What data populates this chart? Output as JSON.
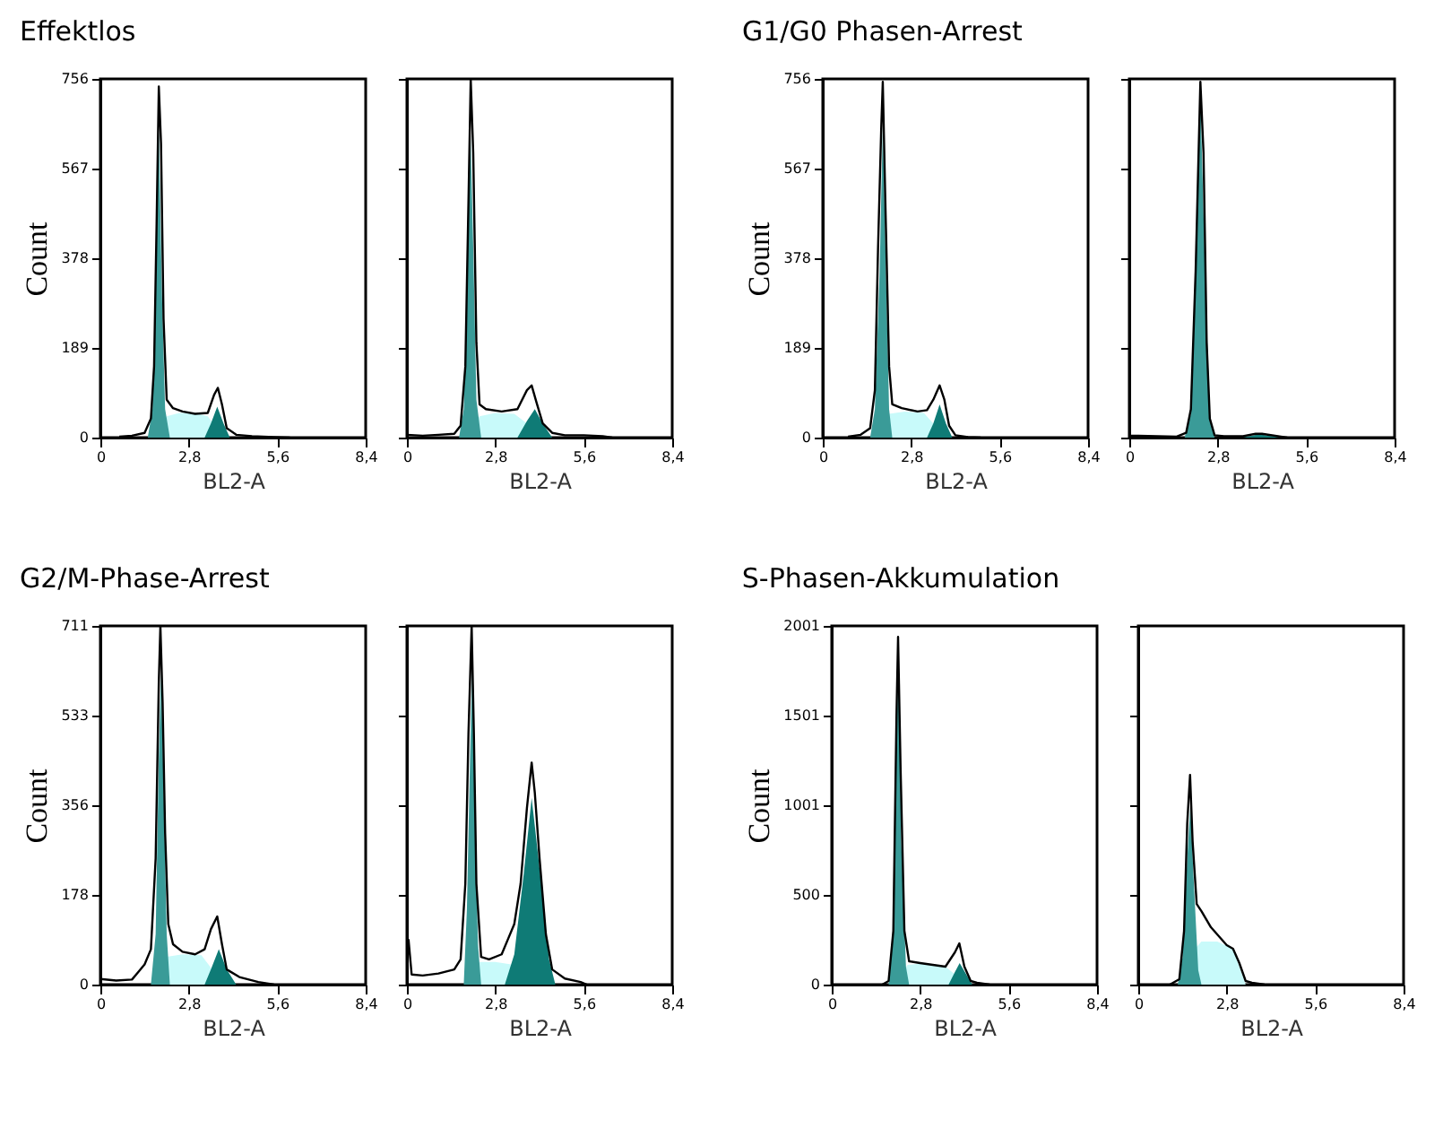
{
  "chart_data": [
    {
      "type": "area",
      "title": "Effektlos",
      "xlabel": "BL2-A",
      "ylabel": "Count",
      "xlim": [
        0,
        8.4
      ],
      "ylim": [
        0,
        756
      ],
      "xticks": [
        {
          "value": 0,
          "label": "0"
        },
        {
          "value": 2.8,
          "label": "2,8"
        },
        {
          "value": 5.6,
          "label": "5,6"
        },
        {
          "value": 8.4,
          "label": "8,4"
        }
      ],
      "yticks": [
        0,
        189,
        378,
        567,
        756
      ],
      "series": [
        {
          "type": "area",
          "color": "#c8fafa",
          "x": [
            1.7,
            2.1,
            2.5,
            3.0,
            3.4,
            3.9
          ],
          "values": [
            0,
            45,
            52,
            52,
            45,
            0
          ]
        },
        {
          "type": "area",
          "color": "#3a9b98",
          "x": [
            1.5,
            1.65,
            1.75,
            1.85,
            1.95,
            2.05,
            2.2
          ],
          "values": [
            0,
            60,
            300,
            650,
            300,
            60,
            0
          ]
        },
        {
          "type": "area",
          "color": "#0f7b76",
          "x": [
            3.3,
            3.5,
            3.7,
            3.9,
            4.1
          ],
          "values": [
            0,
            30,
            65,
            30,
            0
          ]
        },
        {
          "type": "line",
          "color": "#000000",
          "x": [
            0.6,
            1.0,
            1.4,
            1.6,
            1.7,
            1.78,
            1.85,
            1.92,
            2.0,
            2.1,
            2.3,
            2.6,
            3.0,
            3.4,
            3.6,
            3.72,
            3.85,
            4.0,
            4.3,
            4.8,
            5.5,
            6.0
          ],
          "values": [
            2,
            4,
            10,
            40,
            150,
            450,
            740,
            620,
            250,
            80,
            62,
            55,
            50,
            52,
            90,
            105,
            70,
            20,
            6,
            3,
            1,
            0
          ]
        }
      ]
    },
    {
      "type": "area",
      "xlabel": "BL2-A",
      "xlim": [
        0,
        8.4
      ],
      "ylim": [
        0,
        756
      ],
      "xticks": [
        {
          "value": 0,
          "label": "0"
        },
        {
          "value": 2.8,
          "label": "2,8"
        },
        {
          "value": 5.6,
          "label": "5,6"
        },
        {
          "value": 8.4,
          "label": "8,4"
        }
      ],
      "yticks": [
        0,
        189,
        378,
        567,
        756
      ],
      "tick_labels": "x",
      "series": [
        {
          "type": "area",
          "color": "#c8fafa",
          "x": [
            1.8,
            2.3,
            2.8,
            3.4,
            3.8,
            4.1
          ],
          "values": [
            0,
            45,
            52,
            50,
            30,
            0
          ]
        },
        {
          "type": "area",
          "color": "#3a9b98",
          "x": [
            1.65,
            1.8,
            1.9,
            2.0,
            2.1,
            2.2,
            2.35
          ],
          "values": [
            0,
            60,
            300,
            680,
            400,
            80,
            0
          ]
        },
        {
          "type": "area",
          "color": "#0f7b76",
          "x": [
            3.5,
            3.8,
            4.05,
            4.3,
            4.6
          ],
          "values": [
            0,
            35,
            60,
            30,
            0
          ]
        },
        {
          "type": "line",
          "color": "#000000",
          "x": [
            0,
            0.5,
            1.0,
            1.5,
            1.7,
            1.85,
            1.95,
            2.02,
            2.1,
            2.2,
            2.3,
            2.5,
            3.0,
            3.5,
            3.8,
            3.95,
            4.1,
            4.3,
            4.6,
            5.0,
            5.6,
            6.2,
            6.5
          ],
          "values": [
            6,
            4,
            6,
            8,
            25,
            150,
            500,
            756,
            600,
            200,
            70,
            60,
            55,
            60,
            100,
            110,
            75,
            30,
            10,
            5,
            5,
            3,
            0
          ]
        }
      ]
    },
    {
      "type": "area",
      "title": "G1/G0 Phasen-Arrest",
      "xlabel": "BL2-A",
      "ylabel": "Count",
      "xlim": [
        0,
        8.4
      ],
      "ylim": [
        0,
        756
      ],
      "xticks": [
        {
          "value": 0,
          "label": "0"
        },
        {
          "value": 2.8,
          "label": "2,8"
        },
        {
          "value": 5.6,
          "label": "5,6"
        },
        {
          "value": 8.4,
          "label": "8,4"
        }
      ],
      "yticks": [
        0,
        189,
        378,
        567,
        756
      ],
      "series": [
        {
          "type": "area",
          "color": "#c8fafa",
          "x": [
            1.6,
            2.1,
            2.6,
            3.2,
            3.9
          ],
          "values": [
            0,
            50,
            55,
            52,
            0
          ]
        },
        {
          "type": "area",
          "color": "#3a9b98",
          "x": [
            1.5,
            1.65,
            1.8,
            1.9,
            2.0,
            2.1,
            2.2
          ],
          "values": [
            0,
            60,
            350,
            660,
            350,
            60,
            0
          ]
        },
        {
          "type": "area",
          "color": "#0f7b76",
          "x": [
            3.3,
            3.5,
            3.7,
            3.9,
            4.1
          ],
          "values": [
            0,
            30,
            70,
            30,
            0
          ]
        },
        {
          "type": "line",
          "color": "#000000",
          "x": [
            0.8,
            1.2,
            1.5,
            1.65,
            1.75,
            1.85,
            1.9,
            1.98,
            2.1,
            2.2,
            2.5,
            3.0,
            3.3,
            3.5,
            3.7,
            3.85,
            4.0,
            4.2,
            4.6,
            5.0
          ],
          "values": [
            2,
            6,
            20,
            100,
            400,
            650,
            750,
            500,
            150,
            70,
            62,
            55,
            58,
            80,
            110,
            80,
            25,
            5,
            1,
            0
          ]
        }
      ]
    },
    {
      "type": "area",
      "xlabel": "BL2-A",
      "xlim": [
        0,
        8.4
      ],
      "ylim": [
        0,
        756
      ],
      "xticks": [
        {
          "value": 0,
          "label": "0"
        },
        {
          "value": 2.8,
          "label": "2,8"
        },
        {
          "value": 5.6,
          "label": "5,6"
        },
        {
          "value": 8.4,
          "label": "8,4"
        }
      ],
      "yticks": [
        0,
        189,
        378,
        567,
        756
      ],
      "tick_labels": "x",
      "series": [
        {
          "type": "area",
          "color": "#3a9b98",
          "x": [
            1.75,
            1.95,
            2.1,
            2.25,
            2.4,
            2.55,
            2.7
          ],
          "values": [
            0,
            50,
            330,
            720,
            350,
            40,
            0
          ]
        },
        {
          "type": "area",
          "color": "#0f7b76",
          "x": [
            3.6,
            4.1,
            4.8
          ],
          "values": [
            0,
            7,
            0
          ]
        },
        {
          "type": "line",
          "color": "#000000",
          "x": [
            0,
            0.1,
            1.5,
            1.8,
            1.95,
            2.1,
            2.25,
            2.35,
            2.45,
            2.55,
            2.7,
            3.0,
            3.6,
            4.0,
            4.2,
            4.8,
            5.0
          ],
          "values": [
            4,
            4,
            2,
            10,
            60,
            350,
            750,
            600,
            200,
            40,
            5,
            3,
            3,
            8,
            8,
            2,
            0
          ]
        }
      ]
    },
    {
      "type": "area",
      "title": "G2/M-Phase-Arrest",
      "xlabel": "BL2-A",
      "ylabel": "Count",
      "xlim": [
        0,
        8.4
      ],
      "ylim": [
        0,
        711
      ],
      "xticks": [
        {
          "value": 0,
          "label": "0"
        },
        {
          "value": 2.8,
          "label": "2,8"
        },
        {
          "value": 5.6,
          "label": "5,6"
        },
        {
          "value": 8.4,
          "label": "8,4"
        }
      ],
      "yticks": [
        0,
        178,
        356,
        533,
        711
      ],
      "series": [
        {
          "type": "area",
          "color": "#c8fafa",
          "x": [
            1.7,
            2.1,
            2.6,
            3.2,
            3.9
          ],
          "values": [
            0,
            55,
            60,
            58,
            0
          ]
        },
        {
          "type": "area",
          "color": "#3a9b98",
          "x": [
            1.6,
            1.75,
            1.85,
            1.92,
            2.0,
            2.1,
            2.2
          ],
          "values": [
            0,
            100,
            450,
            620,
            400,
            100,
            0
          ]
        },
        {
          "type": "area",
          "color": "#0f7b76",
          "x": [
            3.3,
            3.5,
            3.75,
            4.0,
            4.3
          ],
          "values": [
            0,
            30,
            70,
            30,
            0
          ]
        },
        {
          "type": "line",
          "color": "#000000",
          "x": [
            0,
            0.5,
            1.0,
            1.2,
            1.4,
            1.6,
            1.75,
            1.85,
            1.9,
            1.97,
            2.05,
            2.15,
            2.3,
            2.6,
            3.0,
            3.3,
            3.5,
            3.7,
            3.85,
            4.0,
            4.4,
            5.0,
            5.5
          ],
          "values": [
            11,
            8,
            10,
            25,
            40,
            70,
            250,
            600,
            711,
            560,
            300,
            120,
            80,
            65,
            60,
            70,
            110,
            135,
            80,
            30,
            15,
            5,
            0
          ]
        }
      ]
    },
    {
      "type": "area",
      "xlabel": "BL2-A",
      "xlim": [
        0,
        8.4
      ],
      "ylim": [
        0,
        711
      ],
      "xticks": [
        {
          "value": 0,
          "label": "0"
        },
        {
          "value": 2.8,
          "label": "2,8"
        },
        {
          "value": 5.6,
          "label": "5,6"
        },
        {
          "value": 8.4,
          "label": "8,4"
        }
      ],
      "yticks": [
        0,
        178,
        356,
        533,
        711
      ],
      "tick_labels": "x",
      "series": [
        {
          "type": "area",
          "color": "#c8fafa",
          "x": [
            1.9,
            2.3,
            2.8,
            3.3,
            3.9
          ],
          "values": [
            0,
            45,
            45,
            40,
            0
          ]
        },
        {
          "type": "area",
          "color": "#3a9b98",
          "x": [
            1.8,
            1.9,
            2.0,
            2.07,
            2.15,
            2.25,
            2.35
          ],
          "values": [
            0,
            150,
            450,
            640,
            350,
            80,
            0
          ]
        },
        {
          "type": "area",
          "color": "#0f7b76",
          "x": [
            3.1,
            3.4,
            3.7,
            3.95,
            4.2,
            4.5,
            4.7
          ],
          "values": [
            0,
            60,
            220,
            370,
            230,
            50,
            0
          ]
        },
        {
          "type": "line",
          "color": "#000000",
          "x": [
            0.05,
            0.15,
            0.5,
            1.0,
            1.5,
            1.7,
            1.85,
            1.95,
            2.05,
            2.12,
            2.2,
            2.35,
            2.6,
            3.0,
            3.2,
            3.4,
            3.6,
            3.8,
            3.95,
            4.05,
            4.2,
            4.4,
            4.6,
            5.0,
            5.5,
            5.7
          ],
          "values": [
            90,
            20,
            18,
            22,
            30,
            50,
            200,
            500,
            711,
            500,
            200,
            55,
            50,
            60,
            90,
            120,
            200,
            350,
            440,
            380,
            250,
            100,
            30,
            12,
            5,
            0
          ]
        }
      ]
    },
    {
      "type": "area",
      "title": "S-Phasen-Akkumulation",
      "xlabel": "BL2-A",
      "ylabel": "Count",
      "xlim": [
        0,
        8.4
      ],
      "ylim": [
        0,
        2001
      ],
      "xticks": [
        {
          "value": 0,
          "label": "0"
        },
        {
          "value": 2.8,
          "label": "2,8"
        },
        {
          "value": 5.6,
          "label": "5,6"
        },
        {
          "value": 8.4,
          "label": "8,4"
        }
      ],
      "yticks": [
        0,
        500,
        1001,
        1501,
        2001
      ],
      "series": [
        {
          "type": "area",
          "color": "#c8fafa",
          "x": [
            2.0,
            2.4,
            3.0,
            3.6,
            4.3
          ],
          "values": [
            0,
            110,
            120,
            100,
            0
          ]
        },
        {
          "type": "area",
          "color": "#3a9b98",
          "x": [
            1.8,
            1.95,
            2.05,
            2.12,
            2.2,
            2.35,
            2.45
          ],
          "values": [
            0,
            300,
            1400,
            1800,
            800,
            100,
            0
          ]
        },
        {
          "type": "area",
          "color": "#0f7b76",
          "x": [
            3.7,
            3.9,
            4.05,
            4.25,
            4.45
          ],
          "values": [
            0,
            70,
            120,
            60,
            0
          ]
        },
        {
          "type": "line",
          "color": "#000000",
          "x": [
            1.6,
            1.8,
            1.95,
            2.05,
            2.1,
            2.18,
            2.3,
            2.45,
            2.8,
            3.2,
            3.6,
            3.9,
            4.04,
            4.2,
            4.4,
            4.6,
            5.0
          ],
          "values": [
            0,
            20,
            300,
            1500,
            1940,
            1200,
            300,
            130,
            120,
            110,
            100,
            180,
            230,
            100,
            20,
            10,
            0
          ]
        }
      ]
    },
    {
      "type": "area",
      "xlabel": "BL2-A",
      "xlim": [
        0,
        8.4
      ],
      "ylim": [
        0,
        2001
      ],
      "xticks": [
        {
          "value": 0,
          "label": "0"
        },
        {
          "value": 2.8,
          "label": "2,8"
        },
        {
          "value": 5.6,
          "label": "5,6"
        },
        {
          "value": 8.4,
          "label": "8,4"
        }
      ],
      "yticks": [
        0,
        500,
        1001,
        1501,
        2001
      ],
      "tick_labels": "x",
      "series": [
        {
          "type": "area",
          "color": "#c8fafa",
          "x": [
            1.4,
            1.8,
            2.0,
            2.5,
            3.0,
            3.2,
            3.4
          ],
          "values": [
            0,
            200,
            240,
            240,
            200,
            100,
            0
          ]
        },
        {
          "type": "area",
          "color": "#3a9b98",
          "x": [
            1.25,
            1.4,
            1.55,
            1.65,
            1.75,
            1.9,
            2.0
          ],
          "values": [
            0,
            150,
            700,
            1000,
            600,
            80,
            0
          ]
        },
        {
          "type": "line",
          "color": "#000000",
          "x": [
            1.0,
            1.3,
            1.45,
            1.55,
            1.64,
            1.72,
            1.85,
            2.0,
            2.3,
            2.6,
            2.8,
            3.0,
            3.2,
            3.4,
            3.6,
            4.0
          ],
          "values": [
            0,
            30,
            300,
            900,
            1170,
            800,
            450,
            410,
            320,
            260,
            220,
            200,
            120,
            20,
            10,
            0
          ]
        }
      ]
    }
  ]
}
